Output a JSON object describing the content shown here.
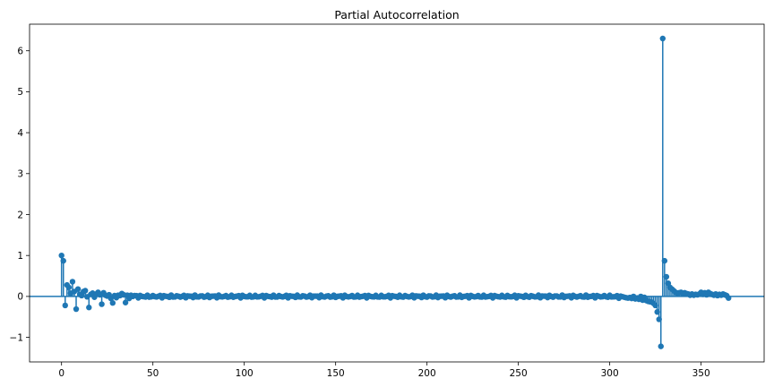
{
  "chart_data": {
    "type": "stem",
    "title": "Partial Autocorrelation",
    "xlabel": "",
    "ylabel": "",
    "xlim": [
      -17.5,
      384.5
    ],
    "ylim": [
      -1.6,
      6.65
    ],
    "xticks": [
      0,
      50,
      100,
      150,
      200,
      250,
      300,
      350
    ],
    "yticks": [
      -1,
      0,
      1,
      2,
      3,
      4,
      5,
      6
    ],
    "ytick_labels": [
      "−1",
      "0",
      "1",
      "2",
      "3",
      "4",
      "5",
      "6"
    ],
    "grid": false,
    "legend": "none",
    "colors": {
      "series": "#1f77b4",
      "axis": "#000000"
    },
    "lag_range": [
      0,
      365
    ],
    "key_values": [
      [
        0,
        1.0
      ],
      [
        1,
        0.87
      ],
      [
        2,
        -0.22
      ],
      [
        3,
        0.28
      ],
      [
        4,
        0.22
      ],
      [
        5,
        0.08
      ],
      [
        6,
        0.36
      ],
      [
        7,
        0.12
      ],
      [
        8,
        -0.31
      ],
      [
        9,
        0.18
      ],
      [
        10,
        0.05
      ],
      [
        11,
        0.02
      ],
      [
        12,
        0.12
      ],
      [
        13,
        0.14
      ],
      [
        14,
        -0.01
      ],
      [
        15,
        -0.27
      ],
      [
        16,
        0.05
      ],
      [
        17,
        0.08
      ],
      [
        18,
        -0.02
      ],
      [
        19,
        0.06
      ],
      [
        20,
        0.1
      ],
      [
        21,
        0.04
      ],
      [
        22,
        -0.19
      ],
      [
        23,
        0.09
      ],
      [
        24,
        0.03
      ],
      [
        25,
        0.01
      ],
      [
        26,
        0.04
      ],
      [
        27,
        -0.05
      ],
      [
        28,
        -0.16
      ],
      [
        29,
        0.02
      ],
      [
        30,
        -0.03
      ],
      [
        31,
        0.03
      ],
      [
        32,
        0.02
      ],
      [
        33,
        0.07
      ],
      [
        34,
        0.04
      ],
      [
        35,
        -0.15
      ],
      [
        36,
        0.03
      ],
      [
        37,
        -0.05
      ],
      [
        38,
        0.03
      ],
      [
        39,
        0.0
      ],
      [
        40,
        0.02
      ],
      [
        310,
        -0.04
      ],
      [
        312,
        -0.05
      ],
      [
        314,
        -0.06
      ],
      [
        316,
        -0.07
      ],
      [
        318,
        -0.09
      ],
      [
        320,
        -0.1
      ],
      [
        321,
        -0.12
      ],
      [
        322,
        -0.13
      ],
      [
        323,
        -0.14
      ],
      [
        324,
        -0.17
      ],
      [
        325,
        -0.22
      ],
      [
        326,
        -0.38
      ],
      [
        327,
        -0.56
      ],
      [
        328,
        -1.22
      ],
      [
        329,
        6.3
      ],
      [
        330,
        0.87
      ],
      [
        331,
        0.48
      ],
      [
        332,
        0.32
      ],
      [
        333,
        0.22
      ],
      [
        334,
        0.18
      ],
      [
        335,
        0.14
      ],
      [
        336,
        0.1
      ],
      [
        337,
        0.08
      ],
      [
        338,
        0.09
      ],
      [
        339,
        0.1
      ],
      [
        340,
        0.06
      ],
      [
        341,
        0.09
      ],
      [
        342,
        0.07
      ],
      [
        343,
        0.06
      ],
      [
        344,
        0.03
      ],
      [
        345,
        0.06
      ],
      [
        346,
        0.03
      ],
      [
        347,
        0.05
      ],
      [
        348,
        0.04
      ],
      [
        349,
        0.06
      ],
      [
        350,
        0.1
      ],
      [
        351,
        0.05
      ],
      [
        352,
        0.09
      ],
      [
        353,
        0.04
      ],
      [
        354,
        0.1
      ],
      [
        355,
        0.07
      ],
      [
        356,
        0.05
      ],
      [
        357,
        0.03
      ],
      [
        358,
        0.06
      ],
      [
        359,
        0.02
      ],
      [
        360,
        0.05
      ],
      [
        361,
        0.03
      ],
      [
        362,
        0.06
      ],
      [
        363,
        0.04
      ],
      [
        364,
        0.02
      ],
      [
        365,
        -0.04
      ]
    ],
    "noise_amplitude_mid_lags": 0.03
  }
}
